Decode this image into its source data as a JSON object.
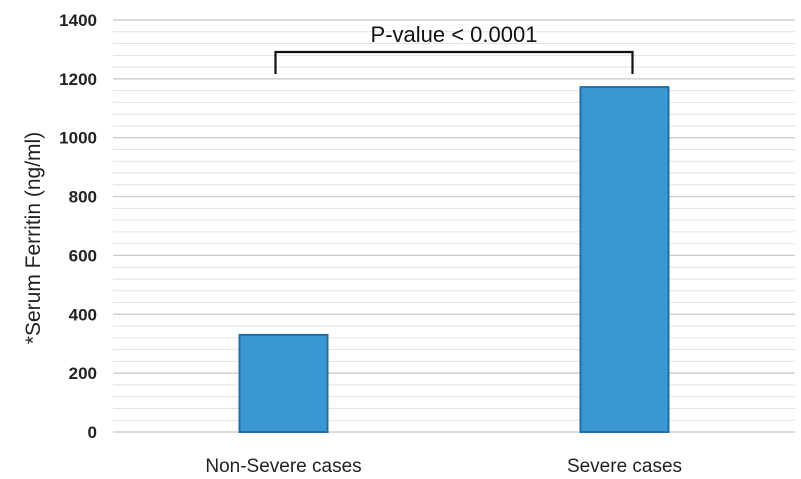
{
  "chart_data": {
    "type": "bar",
    "title": "",
    "xlabel": "",
    "ylabel": "*Serum Ferritin (ng/ml)",
    "categories": [
      "Non-Severe cases",
      "Severe cases"
    ],
    "values": [
      330,
      1172
    ],
    "ylim": [
      0,
      1400
    ],
    "yticks": [
      0,
      200,
      400,
      600,
      800,
      1000,
      1200,
      1400
    ],
    "ytick_labels": [
      "0",
      "200",
      "400",
      "600",
      "800",
      "1000",
      "1200",
      "1400"
    ],
    "minor_gridline_step": 40,
    "grid": true,
    "legend": "none",
    "bar_color": "#3a97d3",
    "bar_edge_color": "#1f6fa5",
    "annotation": {
      "text": "P-value < 0.0001",
      "between": [
        "Non-Severe cases",
        "Severe cases"
      ]
    }
  }
}
